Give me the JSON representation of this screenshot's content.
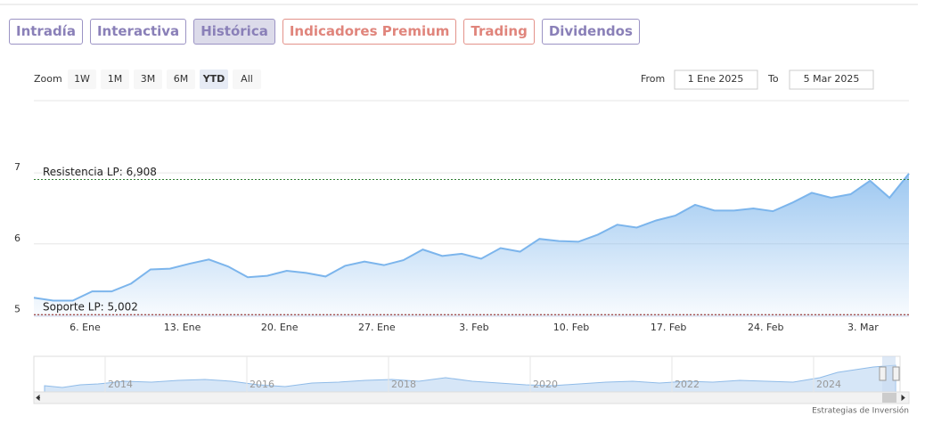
{
  "tabs": [
    "Intradía",
    "Interactiva",
    "Histórica",
    "Indicadores Premium",
    "Trading",
    "Dividendos"
  ],
  "active_tab": 2,
  "zoom": {
    "label": "Zoom",
    "buttons": [
      "1W",
      "1M",
      "3M",
      "6M",
      "YTD",
      "All"
    ],
    "active": 4
  },
  "range": {
    "from_label": "From",
    "from": "1 Ene 2025",
    "to_label": "To",
    "to": "5 Mar 2025"
  },
  "chart_data": {
    "type": "line",
    "categories": [
      null,
      null,
      null,
      "6. Ene",
      null,
      null,
      null,
      null,
      "13. Ene",
      null,
      null,
      null,
      null,
      "20. Ene",
      null,
      null,
      null,
      null,
      "27. Ene",
      null,
      null,
      null,
      null,
      "3. Feb",
      null,
      null,
      null,
      null,
      "10. Feb",
      null,
      null,
      null,
      null,
      "17. Feb",
      null,
      null,
      null,
      null,
      "24. Feb",
      null,
      null,
      null,
      null,
      "3. Mar",
      null,
      null
    ],
    "values": [
      5.24,
      5.2,
      5.2,
      5.33,
      5.33,
      5.44,
      5.64,
      5.65,
      5.72,
      5.78,
      5.68,
      5.53,
      5.55,
      5.62,
      5.59,
      5.54,
      5.69,
      5.75,
      5.7,
      5.77,
      5.92,
      5.83,
      5.86,
      5.79,
      5.94,
      5.89,
      6.07,
      6.04,
      6.03,
      6.13,
      6.27,
      6.23,
      6.33,
      6.4,
      6.55,
      6.47,
      6.47,
      6.5,
      6.46,
      6.58,
      6.72,
      6.65,
      6.7,
      6.89,
      6.65,
      6.99
    ],
    "color": "#7cb5ec",
    "ylim": [
      4.98,
      8
    ],
    "yticks": [
      5,
      6,
      7
    ],
    "grid": true,
    "annotations": [
      {
        "label": "Resistencia LP: 6,908",
        "value": 6.908,
        "color": "#2e7d32"
      },
      {
        "label": "Soporte LP: 5,002",
        "value": 5.002,
        "color": "#8b1a1a"
      }
    ]
  },
  "navigator": {
    "labels": [
      "2014",
      "2016",
      "2018",
      "2020",
      "2022",
      "2024"
    ]
  },
  "credit": "Estrategias de Inversión"
}
